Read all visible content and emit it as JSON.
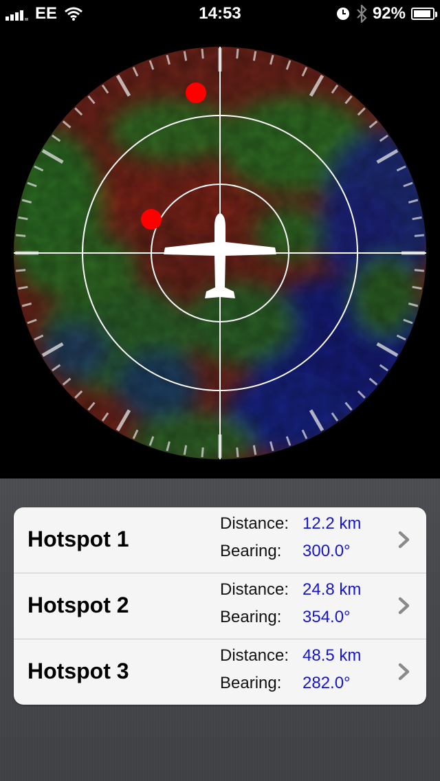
{
  "status_bar": {
    "carrier": "EE",
    "time": "14:53",
    "battery": "92%",
    "battery_level": 0.92,
    "icons": [
      "signal-icon",
      "wifi-icon",
      "alarm-clock-icon",
      "bluetooth-icon",
      "battery-icon"
    ]
  },
  "radar": {
    "rings": 3,
    "hotspot_markers": 2,
    "marker_color": "#ff0000",
    "aircraft_icon": "airplane-icon"
  },
  "hotspots": [
    {
      "name": "Hotspot 1",
      "distance_label": "Distance:",
      "distance": "12.2 km",
      "bearing_label": "Bearing:",
      "bearing": "300.0°"
    },
    {
      "name": "Hotspot 2",
      "distance_label": "Distance:",
      "distance": "24.8 km",
      "bearing_label": "Bearing:",
      "bearing": "354.0°"
    },
    {
      "name": "Hotspot 3",
      "distance_label": "Distance:",
      "distance": "48.5 km",
      "bearing_label": "Bearing:",
      "bearing": "282.0°"
    }
  ],
  "colors": {
    "value_text": "#1414d6",
    "panel_background": "#45474b",
    "list_background": "#f5f5f5"
  }
}
